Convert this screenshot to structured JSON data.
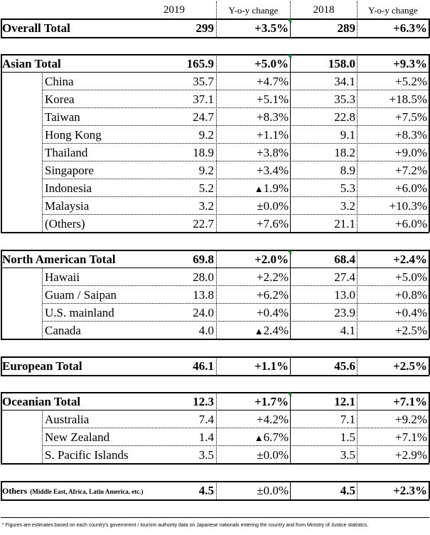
{
  "header": {
    "col_2019": "2019",
    "col_yoy_2019": "Y-o-y change",
    "col_2018": "2018",
    "col_yoy_2018": "Y-o-y change"
  },
  "overall": {
    "label": "Overall Total",
    "v2019": "299",
    "c2019": "+3.5%",
    "v2018": "289",
    "c2018": "+6.3%"
  },
  "asian": {
    "total": {
      "label": "Asian Total",
      "v2019": "165.9",
      "c2019": "+5.0%",
      "v2018": "158.0",
      "c2018": "+9.3%"
    },
    "rows": [
      {
        "label": "China",
        "v2019": "35.7",
        "c2019": "+4.7%",
        "v2018": "34.1",
        "c2018": "+5.2%"
      },
      {
        "label": "Korea",
        "v2019": "37.1",
        "c2019": "+5.1%",
        "v2018": "35.3",
        "c2018": "+18.5%"
      },
      {
        "label": "Taiwan",
        "v2019": "24.7",
        "c2019": "+8.3%",
        "v2018": "22.8",
        "c2018": "+7.5%"
      },
      {
        "label": "Hong Kong",
        "v2019": "9.2",
        "c2019": "+1.1%",
        "v2018": "9.1",
        "c2018": "+8.3%"
      },
      {
        "label": "Thailand",
        "v2019": "18.9",
        "c2019": "+3.8%",
        "v2018": "18.2",
        "c2018": "+9.0%"
      },
      {
        "label": "Singapore",
        "v2019": "9.2",
        "c2019": "+3.4%",
        "v2018": "8.9",
        "c2018": "+7.2%"
      },
      {
        "label": "Indonesia",
        "v2019": "5.2",
        "c2019": "▲1.9%",
        "v2018": "5.3",
        "c2018": "+6.0%"
      },
      {
        "label": "Malaysia",
        "v2019": "3.2",
        "c2019": "±0.0%",
        "v2018": "3.2",
        "c2018": "+10.3%"
      },
      {
        "label": "(Others)",
        "v2019": "22.7",
        "c2019": "+7.6%",
        "v2018": "21.1",
        "c2018": "+6.0%"
      }
    ]
  },
  "north_american": {
    "total": {
      "label": "North American Total",
      "v2019": "69.8",
      "c2019": "+2.0%",
      "v2018": "68.4",
      "c2018": "+2.4%"
    },
    "rows": [
      {
        "label": "Hawaii",
        "v2019": "28.0",
        "c2019": "+2.2%",
        "v2018": "27.4",
        "c2018": "+5.0%"
      },
      {
        "label": "Guam / Saipan",
        "v2019": "13.8",
        "c2019": "+6.2%",
        "v2018": "13.0",
        "c2018": "+0.8%"
      },
      {
        "label": "U.S. mainland",
        "v2019": "24.0",
        "c2019": "+0.4%",
        "v2018": "23.9",
        "c2018": "+0.4%"
      },
      {
        "label": "Canada",
        "v2019": "4.0",
        "c2019": "▲2.4%",
        "v2018": "4.1",
        "c2018": "+2.5%"
      }
    ]
  },
  "european": {
    "label": "European Total",
    "v2019": "46.1",
    "c2019": "+1.1%",
    "v2018": "45.6",
    "c2018": "+2.5%"
  },
  "oceanian": {
    "total": {
      "label": "Oceanian Total",
      "v2019": "12.3",
      "c2019": "+1.7%",
      "v2018": "12.1",
      "c2018": "+7.1%"
    },
    "rows": [
      {
        "label": "Australia",
        "v2019": "7.4",
        "c2019": "+4.2%",
        "v2018": "7.1",
        "c2018": "+9.2%"
      },
      {
        "label": "New Zealand",
        "v2019": "1.4",
        "c2019": "▲6.7%",
        "v2018": "1.5",
        "c2018": "+7.1%"
      },
      {
        "label": "S. Pacific Islands",
        "v2019": "3.5",
        "c2019": "±0.0%",
        "v2018": "3.5",
        "c2018": "+2.9%"
      }
    ]
  },
  "others": {
    "label": "Others",
    "label_note": "(Middle East, Africa, Latin America, etc.)",
    "v2019": "4.5",
    "c2019": "±0.0%",
    "v2018": "4.5",
    "c2018": "+2.3%"
  },
  "footnote": "* Figures are estimates based on each country's government / tourism authority data on Japanese nationals entering the country and from Ministry of Justice statistics.",
  "colors": {
    "flag": "#1e7b34",
    "line": "#000000"
  }
}
